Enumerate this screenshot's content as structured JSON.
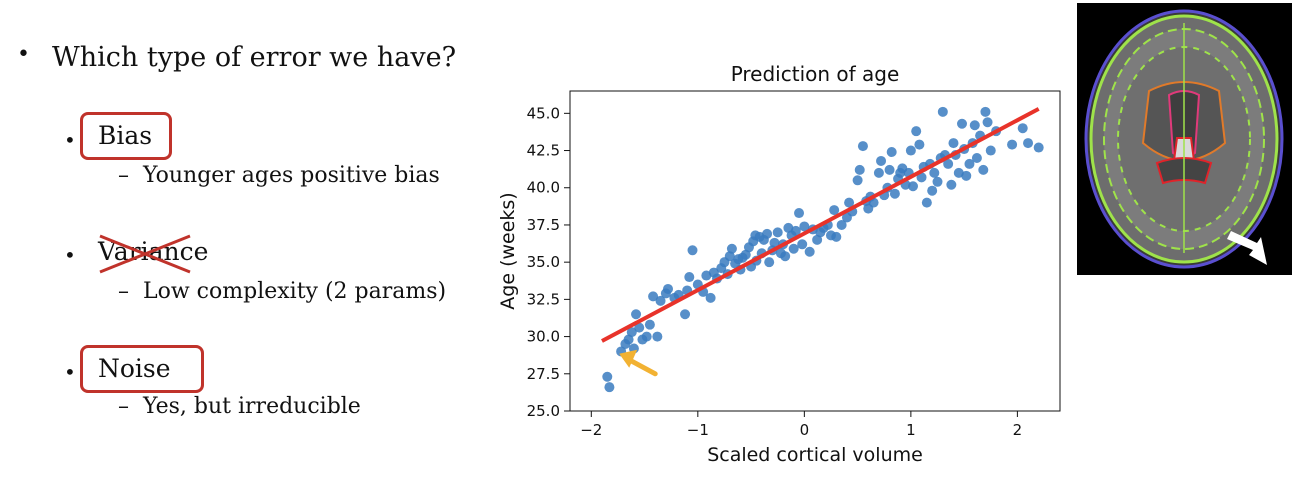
{
  "slide": {
    "bullet_glyph": "•",
    "dash_glyph": "–",
    "question": "Which type of error we have?",
    "items": [
      {
        "label": "Bias",
        "detail": "Younger ages positive bias",
        "boxed": true,
        "struck": false
      },
      {
        "label": "Variance",
        "detail": "Low complexity (2 params)",
        "boxed": false,
        "struck": true
      },
      {
        "label": "Noise",
        "detail": "Yes, but irreducible",
        "boxed": true,
        "struck": false
      }
    ],
    "highlight_color": "#c0332b"
  },
  "chart_data": {
    "type": "scatter",
    "title": "Prediction of age",
    "xlabel": "Scaled cortical volume",
    "ylabel": "Age (weeks)",
    "xlim": [
      -2.2,
      2.4
    ],
    "ylim": [
      25.0,
      46.5
    ],
    "xticks": [
      -2,
      -1,
      0,
      1,
      2
    ],
    "xtick_labels": [
      "−2",
      "−1",
      "0",
      "1",
      "2"
    ],
    "yticks": [
      25.0,
      27.5,
      30.0,
      32.5,
      35.0,
      37.5,
      40.0,
      42.5,
      45.0
    ],
    "ytick_labels": [
      "25.0",
      "27.5",
      "30.0",
      "32.5",
      "35.0",
      "37.5",
      "40.0",
      "42.5",
      "45.0"
    ],
    "grid": false,
    "point_color": "#3a7bbf",
    "fit_color": "#e8332a",
    "fit_line": {
      "x": [
        -1.9,
        2.2
      ],
      "y": [
        29.7,
        45.3
      ]
    },
    "annotation_arrow": {
      "x": -1.4,
      "y": 27.5,
      "color": "#f2b233"
    },
    "points": [
      [
        -1.85,
        27.3
      ],
      [
        -1.83,
        26.6
      ],
      [
        -1.72,
        29.0
      ],
      [
        -1.68,
        29.5
      ],
      [
        -1.65,
        29.8
      ],
      [
        -1.62,
        30.3
      ],
      [
        -1.6,
        29.2
      ],
      [
        -1.58,
        31.5
      ],
      [
        -1.55,
        30.6
      ],
      [
        -1.52,
        29.8
      ],
      [
        -1.48,
        30.0
      ],
      [
        -1.45,
        30.8
      ],
      [
        -1.42,
        32.7
      ],
      [
        -1.38,
        30.0
      ],
      [
        -1.35,
        32.4
      ],
      [
        -1.3,
        32.9
      ],
      [
        -1.28,
        33.2
      ],
      [
        -1.22,
        32.6
      ],
      [
        -1.18,
        32.8
      ],
      [
        -1.12,
        31.5
      ],
      [
        -1.1,
        33.1
      ],
      [
        -1.08,
        34.0
      ],
      [
        -1.05,
        35.8
      ],
      [
        -1.0,
        33.5
      ],
      [
        -0.95,
        33.0
      ],
      [
        -0.92,
        34.1
      ],
      [
        -0.88,
        32.6
      ],
      [
        -0.85,
        34.3
      ],
      [
        -0.82,
        33.9
      ],
      [
        -0.78,
        34.6
      ],
      [
        -0.75,
        35.0
      ],
      [
        -0.72,
        34.2
      ],
      [
        -0.7,
        35.4
      ],
      [
        -0.68,
        35.9
      ],
      [
        -0.65,
        34.9
      ],
      [
        -0.62,
        35.2
      ],
      [
        -0.6,
        34.5
      ],
      [
        -0.58,
        35.3
      ],
      [
        -0.55,
        35.5
      ],
      [
        -0.52,
        36.0
      ],
      [
        -0.5,
        34.7
      ],
      [
        -0.48,
        36.4
      ],
      [
        -0.46,
        36.8
      ],
      [
        -0.45,
        35.1
      ],
      [
        -0.42,
        36.7
      ],
      [
        -0.4,
        35.6
      ],
      [
        -0.38,
        36.5
      ],
      [
        -0.35,
        36.9
      ],
      [
        -0.33,
        35.0
      ],
      [
        -0.3,
        35.8
      ],
      [
        -0.28,
        36.3
      ],
      [
        -0.25,
        37.0
      ],
      [
        -0.22,
        35.6
      ],
      [
        -0.2,
        36.2
      ],
      [
        -0.18,
        35.4
      ],
      [
        -0.15,
        37.3
      ],
      [
        -0.12,
        36.8
      ],
      [
        -0.1,
        35.9
      ],
      [
        -0.08,
        37.1
      ],
      [
        -0.05,
        38.3
      ],
      [
        -0.02,
        36.2
      ],
      [
        0.0,
        37.4
      ],
      [
        0.05,
        35.7
      ],
      [
        0.08,
        37.2
      ],
      [
        0.12,
        36.5
      ],
      [
        0.15,
        37.0
      ],
      [
        0.18,
        37.3
      ],
      [
        0.22,
        37.5
      ],
      [
        0.25,
        36.8
      ],
      [
        0.28,
        38.5
      ],
      [
        0.3,
        36.7
      ],
      [
        0.35,
        37.5
      ],
      [
        0.4,
        38.0
      ],
      [
        0.42,
        39.0
      ],
      [
        0.45,
        38.4
      ],
      [
        0.5,
        40.5
      ],
      [
        0.52,
        41.2
      ],
      [
        0.55,
        42.8
      ],
      [
        0.58,
        39.1
      ],
      [
        0.6,
        38.6
      ],
      [
        0.62,
        39.4
      ],
      [
        0.65,
        39.0
      ],
      [
        0.7,
        41.0
      ],
      [
        0.72,
        41.8
      ],
      [
        0.75,
        39.5
      ],
      [
        0.78,
        40.0
      ],
      [
        0.8,
        41.2
      ],
      [
        0.82,
        42.4
      ],
      [
        0.85,
        39.6
      ],
      [
        0.88,
        40.6
      ],
      [
        0.9,
        41.0
      ],
      [
        0.92,
        41.3
      ],
      [
        0.95,
        40.2
      ],
      [
        0.98,
        41.0
      ],
      [
        1.0,
        42.5
      ],
      [
        1.02,
        40.1
      ],
      [
        1.05,
        43.8
      ],
      [
        1.08,
        42.9
      ],
      [
        1.1,
        40.7
      ],
      [
        1.12,
        41.4
      ],
      [
        1.15,
        39.0
      ],
      [
        1.18,
        41.6
      ],
      [
        1.2,
        39.8
      ],
      [
        1.22,
        41.0
      ],
      [
        1.25,
        40.4
      ],
      [
        1.28,
        42.0
      ],
      [
        1.3,
        45.1
      ],
      [
        1.32,
        42.2
      ],
      [
        1.35,
        41.6
      ],
      [
        1.38,
        40.2
      ],
      [
        1.4,
        43.0
      ],
      [
        1.42,
        42.2
      ],
      [
        1.45,
        41.0
      ],
      [
        1.48,
        44.3
      ],
      [
        1.5,
        42.6
      ],
      [
        1.52,
        40.8
      ],
      [
        1.55,
        41.6
      ],
      [
        1.58,
        43.0
      ],
      [
        1.6,
        44.2
      ],
      [
        1.62,
        42.0
      ],
      [
        1.65,
        43.5
      ],
      [
        1.68,
        41.2
      ],
      [
        1.7,
        45.1
      ],
      [
        1.72,
        44.4
      ],
      [
        1.75,
        42.5
      ],
      [
        1.8,
        43.8
      ],
      [
        1.95,
        42.9
      ],
      [
        2.05,
        44.0
      ],
      [
        2.1,
        43.0
      ],
      [
        2.2,
        42.7
      ]
    ]
  },
  "image": {
    "description_icon": "brain-mri-icon"
  }
}
